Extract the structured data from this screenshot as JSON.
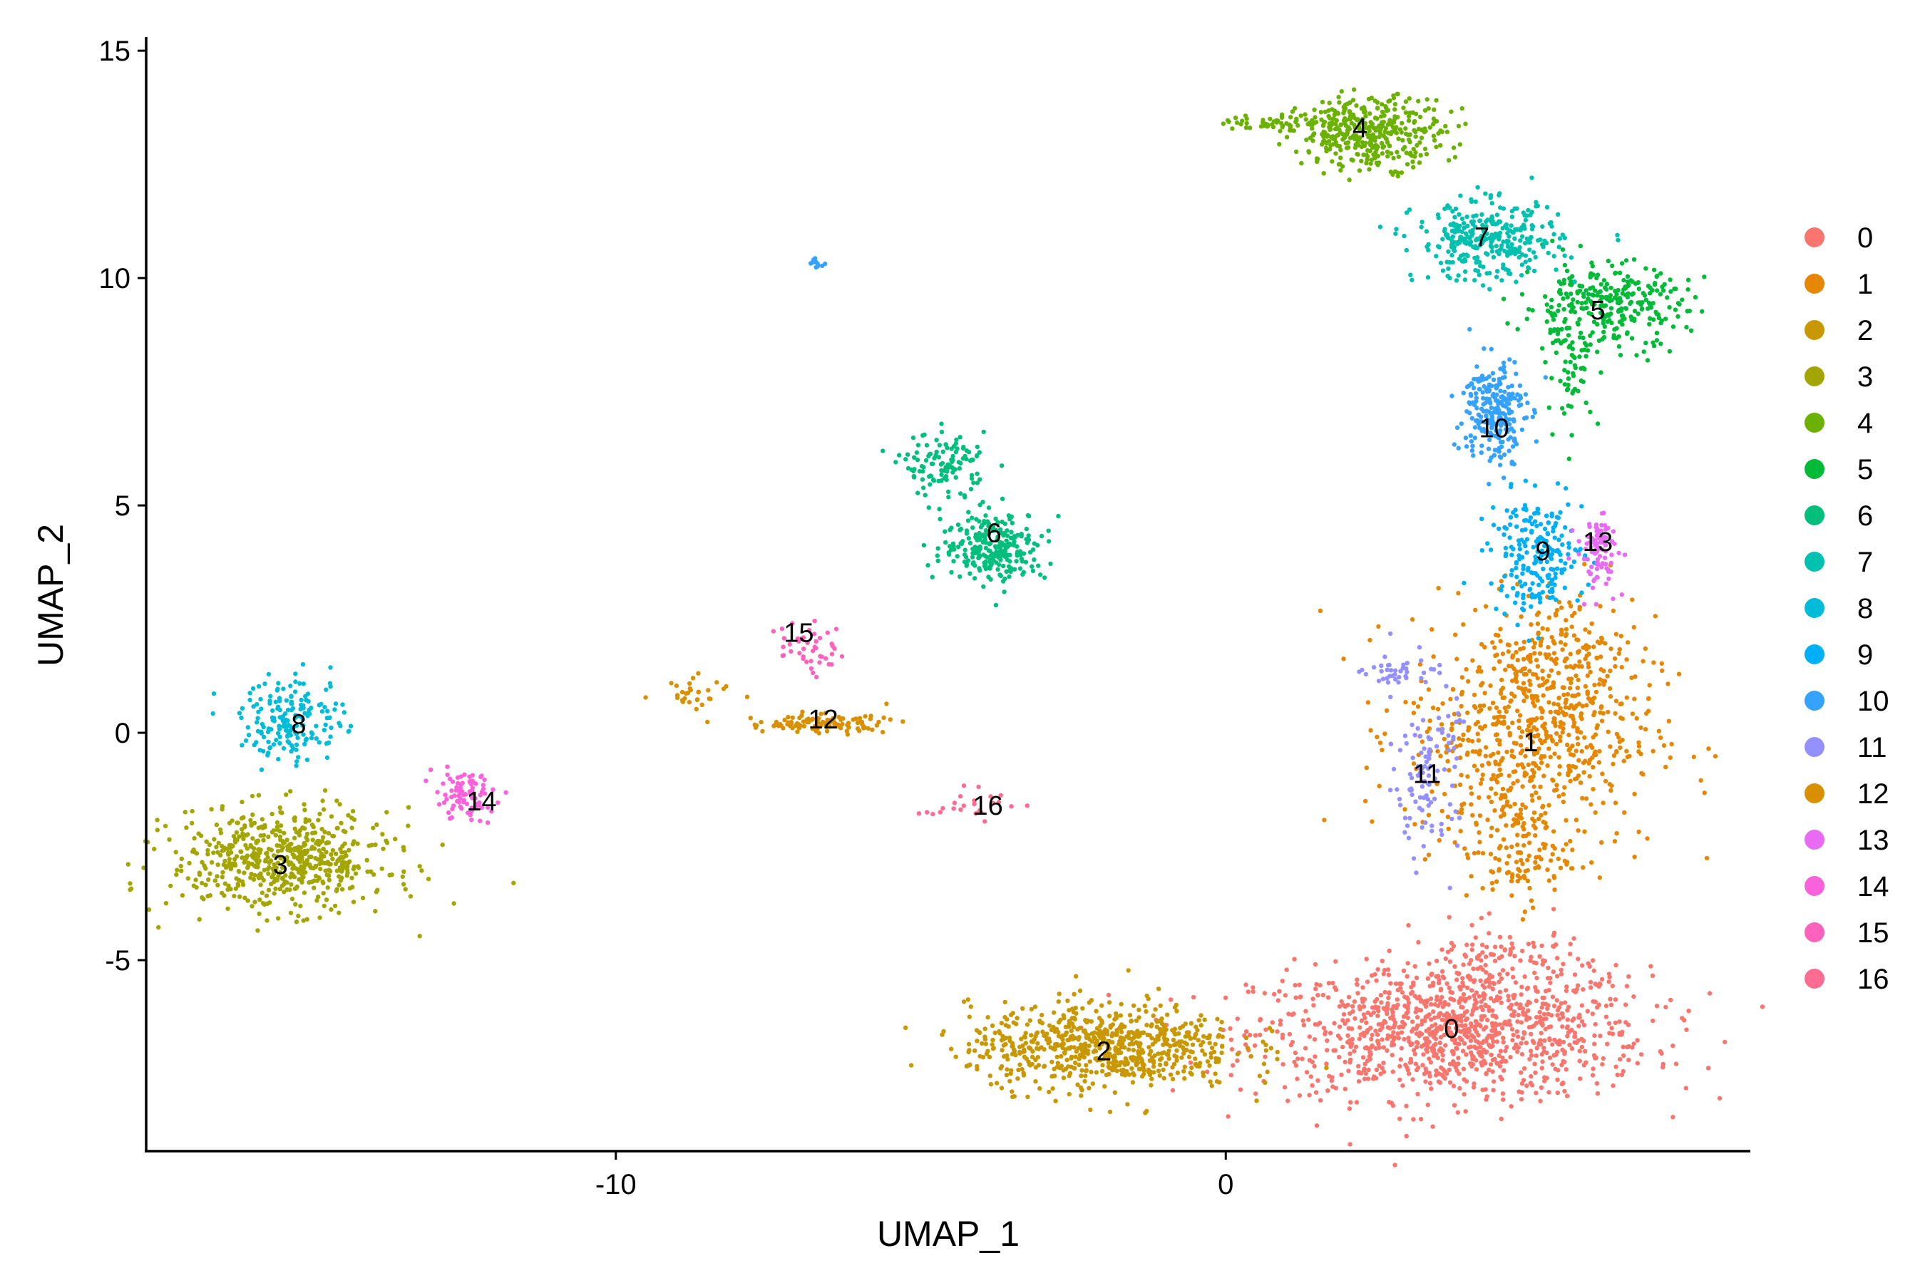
{
  "chart_data": {
    "type": "scatter",
    "title": "",
    "xlabel": "UMAP_1",
    "ylabel": "UMAP_2",
    "xlim": [
      -17.7,
      8.6
    ],
    "ylim": [
      -9.2,
      15.3
    ],
    "x_ticks": [
      -10,
      0
    ],
    "x_tick_labels": [
      "-10",
      "0"
    ],
    "y_ticks": [
      -5,
      0,
      5,
      10,
      15
    ],
    "y_tick_labels": [
      "-5",
      "0",
      "5",
      "10",
      "15"
    ],
    "grid": false,
    "legend_position": "right",
    "series": [
      {
        "name": "0",
        "color": "#F8766D",
        "regions": [
          {
            "cx": 3.7,
            "cy": -6.6,
            "sx": 1.9,
            "sy": 0.85,
            "n": 1100
          },
          {
            "cx": 4.5,
            "cy": -5.2,
            "sx": 0.9,
            "sy": 0.6,
            "n": 140
          }
        ]
      },
      {
        "name": "1",
        "color": "#E58700",
        "regions": [
          {
            "cx": 5.0,
            "cy": 0.0,
            "sx": 1.2,
            "sy": 1.5,
            "n": 650
          },
          {
            "cx": 5.5,
            "cy": 1.6,
            "sx": 0.6,
            "sy": 0.9,
            "n": 150
          },
          {
            "cx": 4.8,
            "cy": -2.6,
            "sx": 0.5,
            "sy": 0.7,
            "n": 120
          }
        ]
      },
      {
        "name": "2",
        "color": "#C99800",
        "regions": [
          {
            "cx": -2.0,
            "cy": -6.9,
            "sx": 1.3,
            "sy": 0.55,
            "n": 720
          }
        ]
      },
      {
        "name": "3",
        "color": "#A3A500",
        "regions": [
          {
            "cx": -15.5,
            "cy": -2.8,
            "sx": 1.05,
            "sy": 0.65,
            "n": 600
          }
        ]
      },
      {
        "name": "4",
        "color": "#6BB100",
        "regions": [
          {
            "cx": 2.4,
            "cy": 13.2,
            "sx": 0.7,
            "sy": 0.45,
            "n": 380
          },
          {
            "cx": 0.9,
            "cy": 13.4,
            "sx": 0.6,
            "sy": 0.12,
            "n": 60
          }
        ]
      },
      {
        "name": "5",
        "color": "#00BA38",
        "regions": [
          {
            "cx": 6.2,
            "cy": 9.4,
            "sx": 0.8,
            "sy": 0.55,
            "n": 300
          },
          {
            "cx": 5.7,
            "cy": 8.0,
            "sx": 0.25,
            "sy": 0.7,
            "n": 60
          }
        ]
      },
      {
        "name": "6",
        "color": "#00BF7D",
        "regions": [
          {
            "cx": -3.8,
            "cy": 4.1,
            "sx": 0.5,
            "sy": 0.45,
            "n": 260
          },
          {
            "cx": -4.6,
            "cy": 5.9,
            "sx": 0.4,
            "sy": 0.4,
            "n": 120
          }
        ]
      },
      {
        "name": "7",
        "color": "#00C0AF",
        "regions": [
          {
            "cx": 4.3,
            "cy": 10.8,
            "sx": 0.7,
            "sy": 0.5,
            "n": 330
          }
        ]
      },
      {
        "name": "8",
        "color": "#00BCD8",
        "regions": [
          {
            "cx": -15.3,
            "cy": 0.3,
            "sx": 0.5,
            "sy": 0.55,
            "n": 180
          }
        ]
      },
      {
        "name": "9",
        "color": "#00B0F6",
        "regions": [
          {
            "cx": 5.1,
            "cy": 3.9,
            "sx": 0.45,
            "sy": 0.75,
            "n": 220
          }
        ]
      },
      {
        "name": "10",
        "color": "#35A2FF",
        "regions": [
          {
            "cx": 4.4,
            "cy": 7.1,
            "sx": 0.3,
            "sy": 0.7,
            "n": 250
          },
          {
            "cx": -6.7,
            "cy": 10.3,
            "sx": 0.06,
            "sy": 0.06,
            "n": 12
          }
        ]
      },
      {
        "name": "11",
        "color": "#9590FF",
        "regions": [
          {
            "cx": 3.3,
            "cy": -0.8,
            "sx": 0.3,
            "sy": 1.1,
            "n": 110
          },
          {
            "cx": 2.8,
            "cy": 1.3,
            "sx": 0.3,
            "sy": 0.25,
            "n": 35
          }
        ]
      },
      {
        "name": "12",
        "color": "#D89000",
        "regions": [
          {
            "cx": -6.7,
            "cy": 0.2,
            "sx": 0.7,
            "sy": 0.12,
            "n": 110
          },
          {
            "cx": -8.6,
            "cy": 0.9,
            "sx": 0.4,
            "sy": 0.2,
            "n": 30
          }
        ]
      },
      {
        "name": "13",
        "color": "#E76BF3",
        "regions": [
          {
            "cx": 6.1,
            "cy": 4.0,
            "sx": 0.2,
            "sy": 0.5,
            "n": 90
          }
        ]
      },
      {
        "name": "14",
        "color": "#FA62DB",
        "regions": [
          {
            "cx": -12.5,
            "cy": -1.4,
            "sx": 0.3,
            "sy": 0.3,
            "n": 90
          }
        ]
      },
      {
        "name": "15",
        "color": "#FF62BC",
        "regions": [
          {
            "cx": -6.8,
            "cy": 1.9,
            "sx": 0.3,
            "sy": 0.35,
            "n": 45
          }
        ]
      },
      {
        "name": "16",
        "color": "#FF6C91",
        "regions": [
          {
            "cx": -4.2,
            "cy": -1.6,
            "sx": 0.45,
            "sy": 0.2,
            "n": 25
          }
        ]
      }
    ],
    "cluster_labels": [
      {
        "text": "0",
        "x": 3.7,
        "y": -6.5
      },
      {
        "text": "1",
        "x": 5.0,
        "y": -0.2
      },
      {
        "text": "2",
        "x": -2.0,
        "y": -7.0
      },
      {
        "text": "3",
        "x": -15.5,
        "y": -2.9
      },
      {
        "text": "4",
        "x": 2.2,
        "y": 13.3
      },
      {
        "text": "5",
        "x": 6.1,
        "y": 9.3
      },
      {
        "text": "6",
        "x": -3.8,
        "y": 4.4
      },
      {
        "text": "7",
        "x": 4.2,
        "y": 10.9
      },
      {
        "text": "8",
        "x": -15.2,
        "y": 0.2
      },
      {
        "text": "9",
        "x": 5.2,
        "y": 4.0
      },
      {
        "text": "10",
        "x": 4.4,
        "y": 6.7
      },
      {
        "text": "11",
        "x": 3.3,
        "y": -0.9
      },
      {
        "text": "12",
        "x": -6.6,
        "y": 0.3
      },
      {
        "text": "13",
        "x": 6.1,
        "y": 4.2
      },
      {
        "text": "14",
        "x": -12.2,
        "y": -1.5
      },
      {
        "text": "15",
        "x": -7.0,
        "y": 2.2
      },
      {
        "text": "16",
        "x": -3.9,
        "y": -1.6
      }
    ]
  }
}
